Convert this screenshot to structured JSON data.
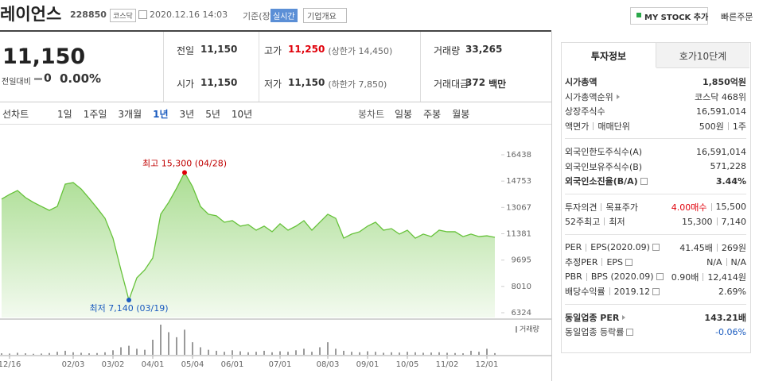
{
  "header": {
    "name": "레이언스",
    "code": "228850",
    "market": "코스닥",
    "timestamp": "2020.12.16 14:03",
    "basis": "기준(장중)",
    "realtime": "실시간",
    "company_info": "기업개요",
    "my_stock": "MY STOCK 추가",
    "quick_order": "빠른주문"
  },
  "summary": {
    "price": "11,150",
    "change_label": "전일대비",
    "change": "0",
    "change_pct": "0.00%"
  },
  "quote": {
    "rows": [
      [
        {
          "label": "전일",
          "value": "11,150"
        },
        {
          "label": "고가",
          "value": "11,250",
          "note": "(상한가 14,450)",
          "value_color": "#e0000a"
        },
        {
          "label": "거래량",
          "value": "33,265"
        }
      ],
      [
        {
          "label": "시가",
          "value": "11,150"
        },
        {
          "label": "저가",
          "value": "11,150",
          "note": "(하한가 7,850)"
        },
        {
          "label": "거래대금",
          "value": "372",
          "unit": "백만"
        }
      ]
    ]
  },
  "chart_controls": {
    "line_label": "선차트",
    "line_periods": [
      "1일",
      "1주일",
      "3개월",
      "1년",
      "3년",
      "5년",
      "10년"
    ],
    "selected": 3,
    "candle_label": "봉차트",
    "candle_periods": [
      "일봉",
      "주봉",
      "월봉"
    ]
  },
  "chart_data": {
    "type": "line",
    "color": "#66c23a",
    "categories": [
      null,
      "12/16",
      null,
      null,
      null,
      null,
      null,
      null,
      null,
      "02/03",
      null,
      null,
      null,
      null,
      "03/02",
      null,
      null,
      null,
      null,
      "04/01",
      null,
      null,
      null,
      null,
      "05/04",
      null,
      null,
      null,
      null,
      "06/01",
      null,
      null,
      null,
      null,
      null,
      "07/01",
      null,
      null,
      null,
      null,
      null,
      "08/03",
      null,
      null,
      null,
      null,
      "09/01",
      null,
      null,
      null,
      null,
      "10/05",
      null,
      null,
      null,
      null,
      "11/02",
      null,
      null,
      null,
      null,
      "12/01",
      null
    ],
    "values": [
      13600,
      13900,
      14150,
      13700,
      13390,
      13130,
      12880,
      13130,
      14560,
      14660,
      14250,
      13650,
      13030,
      12370,
      11100,
      9070,
      7140,
      8560,
      9070,
      9830,
      12630,
      13390,
      14300,
      15300,
      14400,
      13130,
      12630,
      12530,
      12120,
      12220,
      11870,
      11970,
      11610,
      11870,
      11510,
      12020,
      11610,
      11870,
      12220,
      11610,
      12120,
      12630,
      12370,
      11100,
      11360,
      11510,
      11870,
      12120,
      11610,
      11710,
      11360,
      11610,
      11100,
      11360,
      11200,
      11610,
      11510,
      11510,
      11200,
      11360,
      11200,
      11250,
      11150
    ],
    "ylim": [
      6324,
      16438
    ],
    "yticks": [
      16438,
      14753,
      13067,
      11381,
      9695,
      8010,
      6324
    ],
    "high_label": "최고 15,300 (04/28)",
    "low_label": "최저 7,140 (03/19)",
    "volume": {
      "name": "거래량",
      "color": "#9a9a9a",
      "values": [
        30000,
        25000,
        40000,
        30000,
        20000,
        25000,
        35000,
        60000,
        80000,
        50000,
        40000,
        30000,
        35000,
        50000,
        90000,
        150000,
        180000,
        120000,
        100000,
        300000,
        600000,
        450000,
        350000,
        500000,
        250000,
        150000,
        100000,
        80000,
        60000,
        90000,
        70000,
        50000,
        60000,
        80000,
        50000,
        70000,
        60000,
        90000,
        120000,
        60000,
        150000,
        250000,
        120000,
        80000,
        60000,
        50000,
        70000,
        60000,
        40000,
        50000,
        45000,
        60000,
        50000,
        40000,
        45000,
        50000,
        40000,
        35000,
        30000,
        80000,
        60000,
        120000,
        33265
      ]
    }
  },
  "panel": {
    "tabs": [
      "투자정보",
      "호가10단계"
    ],
    "sections": [
      [
        {
          "labels": [
            "시가총액"
          ],
          "values": [
            "1,850억원"
          ],
          "bold": true
        },
        {
          "labels": [
            "시가총액순위"
          ],
          "arrow": true,
          "values": [
            "코스닥 468위"
          ]
        },
        {
          "labels": [
            "상장주식수"
          ],
          "values": [
            "16,591,014"
          ]
        },
        {
          "labels": [
            "액면가",
            "매매단위"
          ],
          "values": [
            "500원",
            "1주"
          ]
        }
      ],
      [
        {
          "labels": [
            "외국인한도주식수(A)"
          ],
          "values": [
            "16,591,014"
          ]
        },
        {
          "labels": [
            "외국인보유주식수(B)"
          ],
          "values": [
            "571,228"
          ]
        },
        {
          "labels": [
            "외국인소진율(B/A)"
          ],
          "help": true,
          "values": [
            "3.44%"
          ],
          "bold": true
        }
      ],
      [
        {
          "labels": [
            "투자의견",
            "목표주가"
          ],
          "values": [
            "4.00매수",
            "15,500"
          ],
          "value_color": "#e0000a"
        },
        {
          "labels": [
            "52주최고",
            "최저"
          ],
          "values": [
            "15,300",
            "7,140"
          ]
        }
      ],
      [
        {
          "labels": [
            "PER",
            "EPS(2020.09)"
          ],
          "help": true,
          "values": [
            "41.45배",
            "269원"
          ]
        },
        {
          "labels": [
            "추정PER",
            "EPS"
          ],
          "help": true,
          "values": [
            "N/A",
            "N/A"
          ]
        },
        {
          "labels": [
            "PBR",
            "BPS (2020.09)"
          ],
          "help": true,
          "values": [
            "0.90배",
            "12,414원"
          ]
        },
        {
          "labels": [
            "배당수익률",
            "2019.12"
          ],
          "help": true,
          "values": [
            "2.69%"
          ]
        }
      ],
      [
        {
          "labels": [
            "동일업종 PER"
          ],
          "arrow": true,
          "values": [
            "143.21배"
          ],
          "bold": true
        },
        {
          "labels": [
            "동일업종 등락률"
          ],
          "help": true,
          "values": [
            "-0.06%"
          ],
          "value_color": "#1a5bbf"
        }
      ]
    ]
  }
}
